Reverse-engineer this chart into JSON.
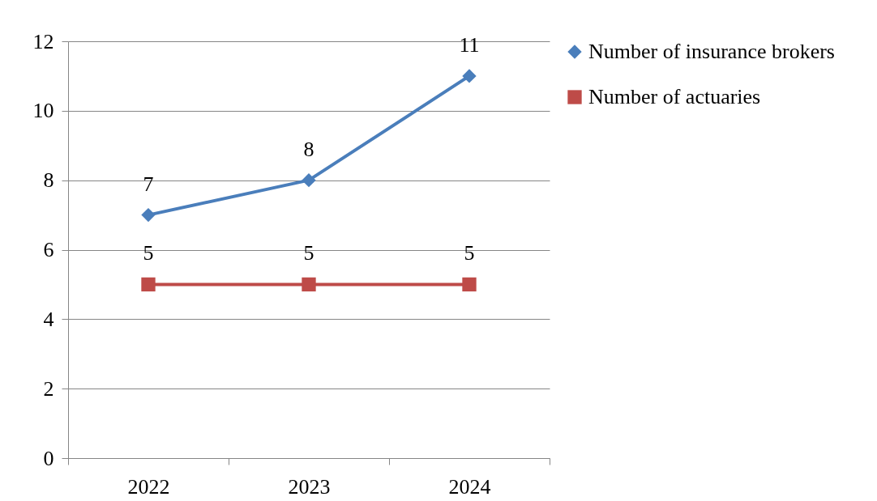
{
  "chart_data": {
    "type": "line",
    "categories": [
      "2022",
      "2023",
      "2024"
    ],
    "series": [
      {
        "name": "Number of insurance brokers",
        "color": "#4a7ebb",
        "marker": "diamond",
        "values": [
          7,
          8,
          11
        ]
      },
      {
        "name": "Number of actuaries",
        "color": "#be4b48",
        "marker": "square",
        "values": [
          5,
          5,
          5
        ]
      }
    ],
    "ylim": [
      0,
      12
    ],
    "yticks": [
      0,
      2,
      4,
      6,
      8,
      10,
      12
    ],
    "grid": "y",
    "legend": "right",
    "data_labels": true
  }
}
